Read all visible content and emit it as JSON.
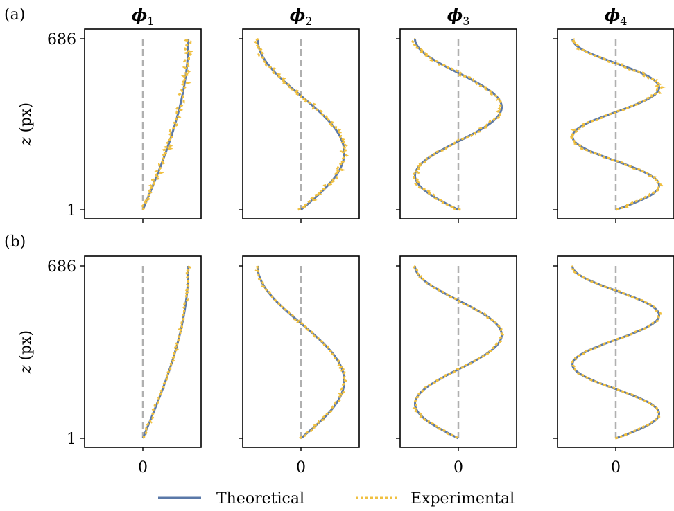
{
  "figure": {
    "row_labels": [
      "(a)",
      "(b)"
    ],
    "column_titles": [
      {
        "main": "ϕ",
        "sub": "1"
      },
      {
        "main": "ϕ",
        "sub": "2"
      },
      {
        "main": "ϕ",
        "sub": "3"
      },
      {
        "main": "ϕ",
        "sub": "4"
      }
    ],
    "ylabel": {
      "var": "z",
      "unit": " (px)"
    },
    "legend": [
      {
        "name": "Theoretical",
        "color": "#5a78a8",
        "style": "solid"
      },
      {
        "name": "Experimental",
        "color": "#f0c040",
        "style": "dotted"
      }
    ],
    "zero_line_color": "#b0b0b0"
  },
  "chart_data": {
    "type": "line",
    "layout": "2x4 panel grid",
    "x_tick_labels": [
      "0"
    ],
    "y_tick_labels": [
      "1",
      "686"
    ],
    "ylim": [
      1,
      686
    ],
    "theoretical_modes": [
      {
        "mode": "ϕ1",
        "n": 1,
        "amplitude": 0.8
      },
      {
        "mode": "ϕ2",
        "n": 2,
        "amplitude": 0.8
      },
      {
        "mode": "ϕ3",
        "n": 3,
        "amplitude": 0.8
      },
      {
        "mode": "ϕ4",
        "n": 4,
        "amplitude": 0.8
      }
    ],
    "rows": [
      {
        "label": "(a)",
        "experimental_noise": 0.06,
        "seed": 7
      },
      {
        "label": "(b)",
        "experimental_noise": 0.03,
        "seed": 19
      }
    ]
  }
}
